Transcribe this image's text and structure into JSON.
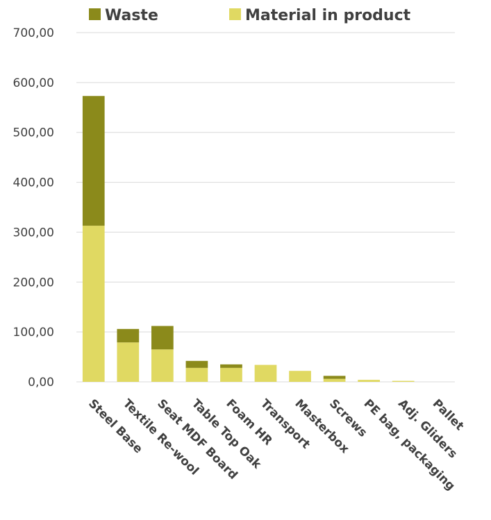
{
  "chart_data": {
    "type": "bar",
    "stacked": true,
    "categories": [
      "Steel Base",
      "Textile Re-wool",
      "Seat MDF Board",
      "Table Top Oak",
      "Foam HR",
      "Transport",
      "Masterbox",
      "Screws",
      "PE bag, packaging",
      "Adj. Gliders",
      "Pallet"
    ],
    "series": [
      {
        "name": "Material in product",
        "color": "#e0d962",
        "values": [
          313,
          79,
          65,
          28,
          28,
          34,
          22,
          6,
          4,
          2,
          0
        ]
      },
      {
        "name": "Waste",
        "color": "#8b8a1b",
        "values": [
          260,
          27,
          47,
          14,
          7,
          0,
          0,
          6,
          0,
          0,
          0
        ]
      }
    ],
    "legend_order": [
      "Waste",
      "Material in product"
    ],
    "legend_position": "top",
    "ylim": [
      0,
      700
    ],
    "yticks": [
      "0,00",
      "100,00",
      "200,00",
      "300,00",
      "400,00",
      "500,00",
      "600,00",
      "700,00"
    ],
    "grid": true
  }
}
